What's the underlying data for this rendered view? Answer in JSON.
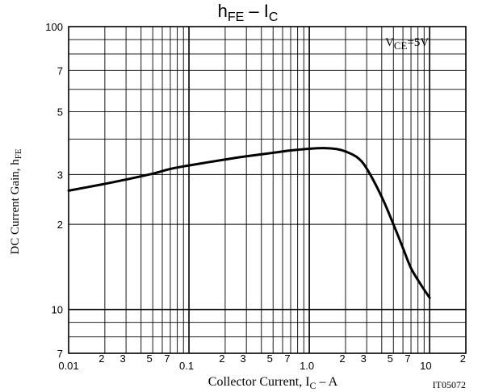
{
  "chart_data": {
    "type": "line",
    "title": {
      "main": "h",
      "main_sub": "FE",
      "sep": " – ",
      "vs": "I",
      "vs_sub": "C"
    },
    "ylabel": {
      "main": "DC Current Gain, h",
      "sub": "FE"
    },
    "xlabel": {
      "main": "Collector Current, I",
      "sub": "C",
      "suffix": " – A"
    },
    "annotation": {
      "main": "V",
      "sub": "CE",
      "suffix": "=5V"
    },
    "figure_id": "IT05072",
    "x_scale": "log",
    "y_scale": "log",
    "xlim": [
      0.01,
      20
    ],
    "ylim": [
      7,
      100
    ],
    "grid": true,
    "x_tick_labels": [
      {
        "v": 0.01,
        "t": "0.01",
        "major": true
      },
      {
        "v": 0.02,
        "t": "2"
      },
      {
        "v": 0.03,
        "t": "3"
      },
      {
        "v": 0.05,
        "t": "5"
      },
      {
        "v": 0.07,
        "t": "7"
      },
      {
        "v": 0.1,
        "t": "0.1",
        "major": true
      },
      {
        "v": 0.2,
        "t": "2"
      },
      {
        "v": 0.3,
        "t": "3"
      },
      {
        "v": 0.5,
        "t": "5"
      },
      {
        "v": 0.7,
        "t": "7"
      },
      {
        "v": 1.0,
        "t": "1.0",
        "major": true
      },
      {
        "v": 2,
        "t": "2"
      },
      {
        "v": 3,
        "t": "3"
      },
      {
        "v": 5,
        "t": "5"
      },
      {
        "v": 7,
        "t": "7"
      },
      {
        "v": 10,
        "t": "10",
        "major": true
      },
      {
        "v": 20,
        "t": "2"
      }
    ],
    "y_tick_labels": [
      {
        "v": 100,
        "t": "100",
        "major": true
      },
      {
        "v": 70,
        "t": "7"
      },
      {
        "v": 50,
        "t": "5"
      },
      {
        "v": 30,
        "t": "3"
      },
      {
        "v": 20,
        "t": "2"
      },
      {
        "v": 10,
        "t": "10",
        "major": true
      },
      {
        "v": 7,
        "t": "7"
      }
    ],
    "series": [
      {
        "color": "#000000",
        "points": [
          [
            0.01,
            26.3
          ],
          [
            0.02,
            27.8
          ],
          [
            0.03,
            28.8
          ],
          [
            0.05,
            30.2
          ],
          [
            0.07,
            31.4
          ],
          [
            0.1,
            32.3
          ],
          [
            0.2,
            33.9
          ],
          [
            0.3,
            34.8
          ],
          [
            0.5,
            35.8
          ],
          [
            0.7,
            36.5
          ],
          [
            1.0,
            37.0
          ],
          [
            1.3,
            37.2
          ],
          [
            1.7,
            36.9
          ],
          [
            2.0,
            36.2
          ],
          [
            2.5,
            34.5
          ],
          [
            3.0,
            31.5
          ],
          [
            4.0,
            25.0
          ],
          [
            5.0,
            20.0
          ],
          [
            6.0,
            16.5
          ],
          [
            7.0,
            14.0
          ],
          [
            8.5,
            12.2
          ],
          [
            10.0,
            11.0
          ]
        ]
      }
    ]
  }
}
